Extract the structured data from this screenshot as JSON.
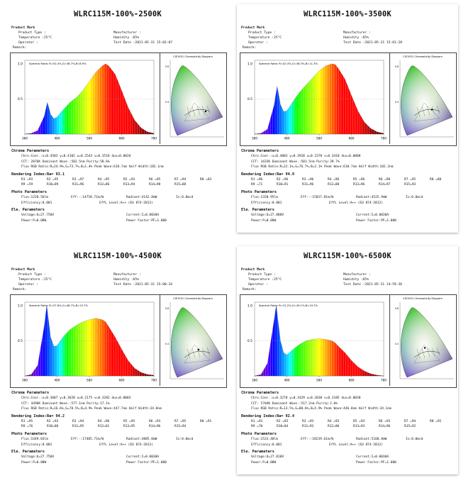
{
  "panels": [
    {
      "title": "WLRC115M-100%-2500K",
      "header": {
        "product_mark": "Product Mark",
        "product_type": "Product Type :",
        "manufacturer": "Manufacturer :",
        "temperature": "Temperature :25°C",
        "humidity": "Humidity :65%",
        "operator": "Operator :",
        "test_date": "Test Date :2021-05-31 15:02:07",
        "remark": "Remark:"
      },
      "spectral_ratio": "Spectral Ratio: R=52.4%,G=38.7%,B=8.9%",
      "cie_title": "CIE1931 Chromaticity Diagram",
      "chroma": {
        "heading": "Chroma Parameters",
        "line1": "Chro.Coor.:x=0.4502  y=0.4102   u=0.2543  v=0.3518   duv=0.0026",
        "line2": "CCT: 2876K  Dominant Wave.:582.5nm  Purity:58.6%",
        "line3": "Flux RGB Ratio:R=24.9%,G=73.7%,B=1.4%  Peak Wave:618.7nm   Half Width:182.1nm"
      },
      "rendering": {
        "heading": "Rendering Index:Ra= 93.1",
        "row1": [
          "R1 =93",
          "R2 =95",
          "R3 =97",
          "R4 =95",
          "R5 =93",
          "R6 =95",
          "R7 =94",
          "R8 =83"
        ],
        "row2": [
          "R9 =59",
          "R10=89",
          "R11=96",
          "R12=86",
          "R13=94",
          "R14=98",
          "R15=88"
        ]
      },
      "photo": {
        "heading": "Photo Parameters",
        "line1a": "Flux:1228.56lm",
        "line1b": "Eff:-:14758.71m/W",
        "line1c": "Radiant:4142.8mW",
        "line1d": "Iv:0.0mcd",
        "line2a": "Efficiency:0.001",
        "line2b": "EffL Level:A++ (EU 874-2012)"
      },
      "ele": {
        "heading": "Ele. Parameters",
        "voltage": "Voltage:U=27.750V",
        "current": "Current:I=0.0030A",
        "power": "Power:P=0.08W",
        "pf": "Power Factor:PF=1.000"
      },
      "chart_data": {
        "type": "area",
        "title": "",
        "xlabel": "Wavelength (nm)",
        "ylabel": "",
        "x_ticks": [
          "380",
          "480",
          "580",
          "680",
          "780"
        ],
        "y_ticks": [
          "1.0",
          "0.5"
        ],
        "xlim": [
          380,
          780
        ],
        "ylim": [
          0,
          1.05
        ],
        "x": [
          380,
          400,
          420,
          440,
          450,
          460,
          470,
          480,
          490,
          500,
          520,
          540,
          560,
          580,
          600,
          620,
          630,
          640,
          660,
          680,
          700,
          720,
          740,
          760,
          780
        ],
        "values": [
          0,
          0.01,
          0.05,
          0.25,
          0.45,
          0.28,
          0.22,
          0.24,
          0.3,
          0.35,
          0.45,
          0.52,
          0.62,
          0.75,
          0.88,
          0.97,
          1.0,
          0.97,
          0.85,
          0.62,
          0.38,
          0.2,
          0.09,
          0.03,
          0.01
        ]
      }
    },
    {
      "title": "WLRC115M-100%-3500K",
      "header": {
        "product_mark": "Product Mark",
        "product_type": "Product Type :",
        "manufacturer": "Manufacturer :",
        "temperature": "Temperature :25°C",
        "humidity": "Humidity :65%",
        "operator": "Operator :",
        "test_date": "Test Date :2021-05-31 15:01:28",
        "remark": "Remark:"
      },
      "spectral_ratio": "Spectral Ratio: R=42.4%,G=46.3%,B=11.3%",
      "cie_title": "CIE1931 Chromaticity Diagram",
      "chroma": {
        "heading": "Chroma Parameters",
        "line1": "Chro.Coor.:x=0.4083  y=0.3920   u=0.2378  v=0.3410   duv=0.0008",
        "line2": "CCT: 3432K  Dominant Wave.:581.5nm  Purity:39.7%",
        "line3": "Flux RGB Ratio:R=22.1%,G=76.7%,B=2.1%  Peak Wave:618.7nm   Half Width:182.2nm"
      },
      "rendering": {
        "heading": "Rendering Index:Ra= 94.9",
        "row1": [
          "R1 =96",
          "R2 =96",
          "R3 =96",
          "R4 =96",
          "R5 =96",
          "R6 =96",
          "R7 =95",
          "R8 =88"
        ],
        "row2": [
          "R9 =71",
          "R10=91",
          "R11=96",
          "R12=88",
          "R13=96",
          "R14=97",
          "R15=93"
        ]
      },
      "photo": {
        "heading": "Photo Parameters",
        "line1a": "Flux:1320.95lm",
        "line1b": "Eff:-:15837.81m/W",
        "line1c": "Radiant:4525.9mW",
        "line1d": "Iv:0.0mcd",
        "line2a": "Efficiency:0.001",
        "line2b": "EffL Level:A++ (EU 874-2012)"
      },
      "ele": {
        "heading": "Ele. Parameters",
        "voltage": "Voltage:U=27.800V",
        "current": "Current:I=0.0030A",
        "power": "Power:P=0.08W",
        "pf": "Power Factor:PF=1.000"
      },
      "chart_data": {
        "type": "area",
        "title": "",
        "xlabel": "Wavelength (nm)",
        "ylabel": "",
        "x_ticks": [
          "380",
          "480",
          "580",
          "680",
          "780"
        ],
        "y_ticks": [
          "1.0",
          "0.5"
        ],
        "xlim": [
          380,
          780
        ],
        "ylim": [
          0,
          1.05
        ],
        "x": [
          380,
          400,
          420,
          440,
          450,
          460,
          470,
          480,
          490,
          500,
          520,
          540,
          560,
          580,
          600,
          620,
          630,
          640,
          660,
          680,
          700,
          720,
          740,
          760,
          780
        ],
        "values": [
          0,
          0.01,
          0.07,
          0.4,
          0.68,
          0.42,
          0.32,
          0.33,
          0.4,
          0.47,
          0.6,
          0.7,
          0.8,
          0.9,
          0.97,
          1.0,
          0.99,
          0.93,
          0.78,
          0.55,
          0.33,
          0.17,
          0.08,
          0.03,
          0.01
        ]
      }
    },
    {
      "title": "WLRC115M-100%-4500K",
      "header": {
        "product_mark": "Product Mark",
        "product_type": "Product Type :",
        "manufacturer": "Manufacturer :",
        "temperature": "Temperature :25°C",
        "humidity": "Humidity :65%",
        "operator": "Operator :",
        "test_date": "Test Date :2021-05-31 15:00:34",
        "remark": "Remark:"
      },
      "spectral_ratio": "Spectral Ratio: R=37.6%,G=48.7%,B=13.7%",
      "cie_title": "CIE1931 Chromaticity Diagram",
      "chroma": {
        "heading": "Chroma Parameters",
        "line1": "Chro.Coor.:x=0.3607  y=0.3628   u=0.2175  v=0.3282   duv=0.0003",
        "line2": "CCT: 4496K  Dominant Wave.:577.1nm  Purity:17.1%",
        "line3": "Flux RGB Ratio:R=16.6%,G=78.5%,B=4.9%  Peak Wave:447.7nm   Half Width:34.8nm"
      },
      "rendering": {
        "heading": "Rendering Index:Ra= 94.2",
        "row1": [
          "R1 =95",
          "R2 =93",
          "R3 =94",
          "R4 =96",
          "R5 =95",
          "R6 =93",
          "R7 =95",
          "R8 =91"
        ],
        "row2": [
          "R9 =76",
          "R10=88",
          "R11=95",
          "R12=81",
          "R13=95",
          "R14=96",
          "R15=94"
        ]
      },
      "photo": {
        "heading": "Photo Parameters",
        "line1a": "Flux:1449.03lm",
        "line1b": "Eff:-:17405.71m/W",
        "line1c": "Radiant:4885.0mW",
        "line1d": "Iv:0.0mcd",
        "line2a": "Efficiency:0.001",
        "line2b": "EffL Level:A++ (EU 874-2012)"
      },
      "ele": {
        "heading": "Ele. Parameters",
        "voltage": "Voltage:U=27.750V",
        "current": "Current:I=0.0030A",
        "power": "Power:P=0.08W",
        "pf": "Power Factor:PF=1.000"
      },
      "chart_data": {
        "type": "area",
        "title": "",
        "xlabel": "Wavelength (nm)",
        "ylabel": "",
        "x_ticks": [
          "380",
          "480",
          "580",
          "680",
          "780"
        ],
        "y_ticks": [
          "1.0",
          "0.5"
        ],
        "xlim": [
          380,
          780
        ],
        "ylim": [
          0,
          1.05
        ],
        "x": [
          380,
          400,
          420,
          440,
          448,
          460,
          470,
          480,
          490,
          500,
          520,
          540,
          560,
          580,
          600,
          620,
          630,
          640,
          660,
          680,
          700,
          720,
          740,
          760,
          780
        ],
        "values": [
          0,
          0.02,
          0.15,
          0.7,
          1.0,
          0.55,
          0.42,
          0.43,
          0.5,
          0.56,
          0.66,
          0.72,
          0.77,
          0.8,
          0.82,
          0.8,
          0.77,
          0.7,
          0.55,
          0.38,
          0.22,
          0.11,
          0.05,
          0.02,
          0.01
        ]
      }
    },
    {
      "title": "WLRC115M-100%-6500K",
      "header": {
        "product_mark": "Product Mark",
        "product_type": "Product Type :",
        "manufacturer": "Manufacturer :",
        "temperature": "Temperature :25°C",
        "humidity": "Humidity :65%",
        "operator": "Operator :",
        "test_date": "Test Date :2021-05-31 14:59:36",
        "remark": "Remark:"
      },
      "spectral_ratio": "Spectral Ratio: R=31.2%,G=49.1%,B=19.7%",
      "cie_title": "CIE1931 Chromaticity Diagram",
      "chroma": {
        "heading": "Chroma Parameters",
        "line1": "Chro.Coor.:x=0.3278  y=0.3429   u=0.2030  v=0.3185   duv=0.0030",
        "line2": "CCT: 5704K  Dominant Wave.:517.2nm  Purity:2.0%",
        "line3": "Flux RGB Ratio:R=13.5%,G=80.6%,B=5.9%  Peak Wave:446.8nm   Half Width:34.1nm"
      },
      "rendering": {
        "heading": "Rendering Index:Ra= 92.4",
        "row1": [
          "R1 =92",
          "R2 =93",
          "R3 =93",
          "R4 =93",
          "R5 =93",
          "R6 =93",
          "R7 =94",
          "R8 =92"
        ],
        "row2": [
          "R9 =70",
          "R10=84",
          "R11=93",
          "R12=80",
          "R13=93",
          "R14=96",
          "R15=92"
        ]
      },
      "photo": {
        "heading": "Photo Parameters",
        "line1a": "Flux:1523.40lm",
        "line1b": "Eff:-:18239.61m/W",
        "line1c": "Radiant:5160.8mW",
        "line1d": "Iv:0.0mcd",
        "line2a": "Efficiency:0.001",
        "line2b": "EffL Level:A++ (EU 874-2012)"
      },
      "ele": {
        "heading": "Ele. Parameters",
        "voltage": "Voltage:U=27.810V",
        "current": "Current:I=0.0030A",
        "power": "Power:P=0.08W",
        "pf": "Power Factor:PF=1.000"
      },
      "chart_data": {
        "type": "area",
        "title": "",
        "xlabel": "Wavelength (nm)",
        "ylabel": "",
        "x_ticks": [
          "380",
          "480",
          "580",
          "680",
          "780"
        ],
        "y_ticks": [
          "1.0",
          "0.5"
        ],
        "xlim": [
          380,
          780
        ],
        "ylim": [
          0,
          1.05
        ],
        "x": [
          380,
          400,
          420,
          440,
          447,
          460,
          470,
          480,
          490,
          500,
          520,
          540,
          560,
          580,
          600,
          620,
          630,
          640,
          660,
          680,
          700,
          720,
          740,
          760,
          780
        ],
        "values": [
          0,
          0.02,
          0.18,
          0.78,
          1.0,
          0.5,
          0.33,
          0.3,
          0.34,
          0.38,
          0.45,
          0.5,
          0.52,
          0.53,
          0.52,
          0.5,
          0.47,
          0.42,
          0.33,
          0.22,
          0.13,
          0.07,
          0.03,
          0.01,
          0
        ]
      }
    }
  ]
}
